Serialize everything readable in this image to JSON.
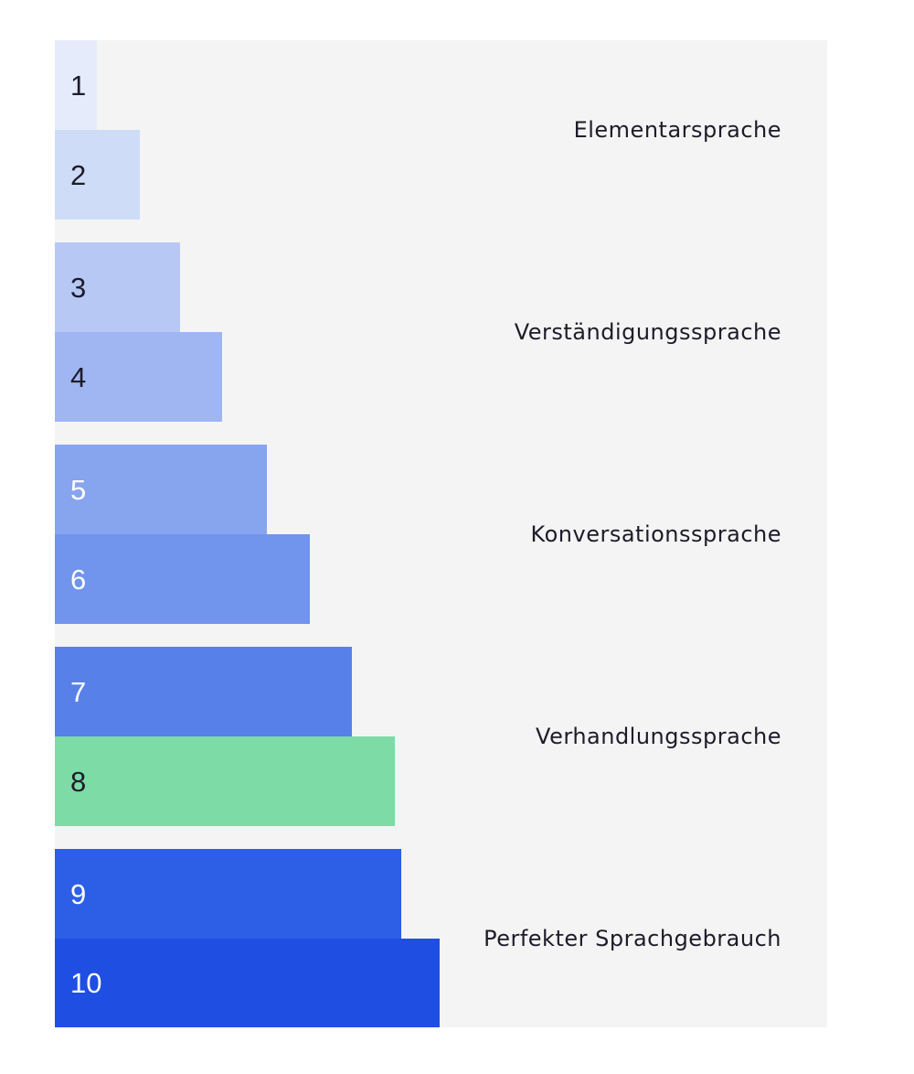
{
  "levels": [
    {
      "number": "1",
      "color": "#e5ebfb",
      "text_color": "#1c1c2a"
    },
    {
      "number": "2",
      "color": "#cfdcf7",
      "text_color": "#1c1c2a"
    },
    {
      "number": "3",
      "color": "#b7c8f5",
      "text_color": "#1c1c2a"
    },
    {
      "number": "4",
      "color": "#9fb6f2",
      "text_color": "#1c1c2a"
    },
    {
      "number": "5",
      "color": "#87a4ee",
      "text_color": "#ffffff"
    },
    {
      "number": "6",
      "color": "#7194ec",
      "text_color": "#ffffff"
    },
    {
      "number": "7",
      "color": "#5880e9",
      "text_color": "#ffffff"
    },
    {
      "number": "8",
      "color": "#7ddba5",
      "text_color": "#1c1c2a",
      "highlighted": true
    },
    {
      "number": "9",
      "color": "#2d5ee6",
      "text_color": "#ffffff"
    },
    {
      "number": "10",
      "color": "#1f4ee2",
      "text_color": "#ffffff"
    }
  ],
  "groups": [
    {
      "label": "Elementarsprache"
    },
    {
      "label": "Verständigungssprache"
    },
    {
      "label": "Konversationssprache"
    },
    {
      "label": "Verhandlungssprache"
    },
    {
      "label": "Perfekter Sprachgebrauch"
    }
  ]
}
